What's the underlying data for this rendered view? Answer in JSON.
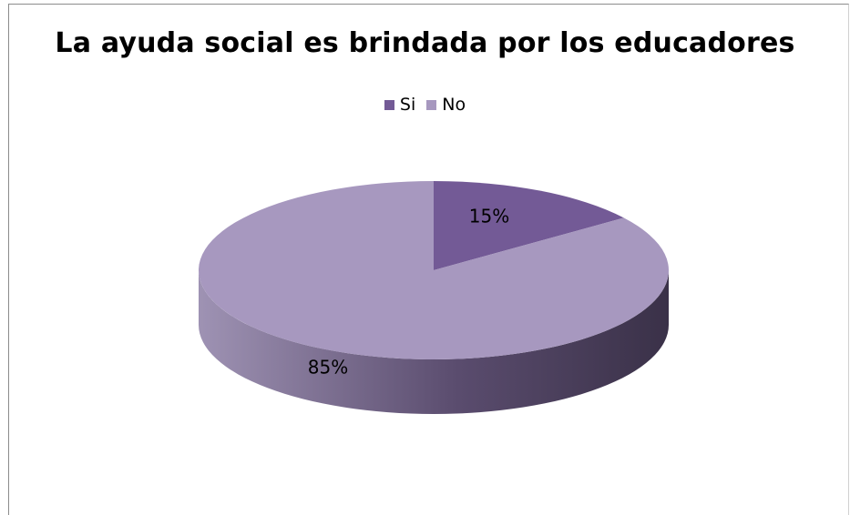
{
  "chart_data": {
    "type": "pie",
    "title": "La ayuda social es brindada por los educadores",
    "categories": [
      "Si",
      "No"
    ],
    "values": [
      15,
      85
    ],
    "data_labels": [
      "15%",
      "85%"
    ],
    "legend_position": "top",
    "colors": {
      "Si": "#735a96",
      "No": "#a798bf",
      "Si_side": "#5a4678",
      "No_side_light": "#9e92b3",
      "No_side_dark": "#3f3650"
    }
  }
}
